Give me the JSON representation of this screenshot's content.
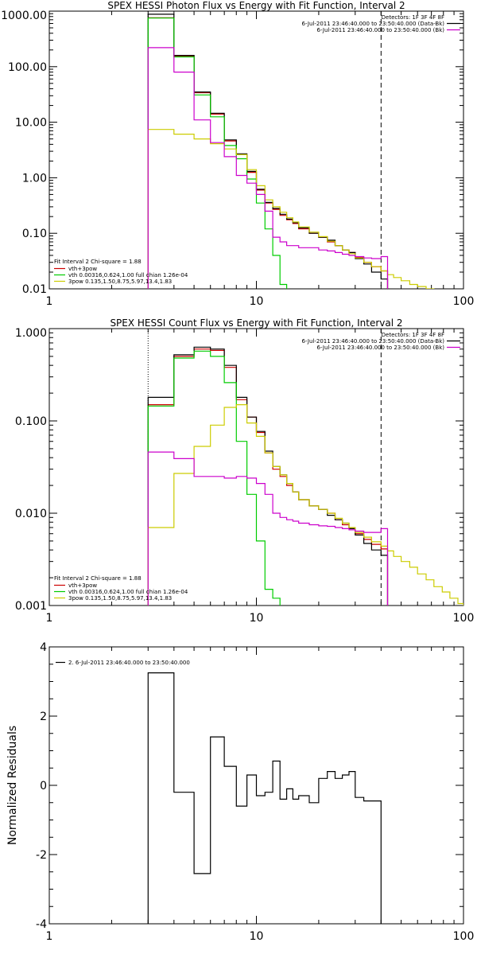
{
  "chart_data": [
    {
      "type": "line",
      "title": "SPEX HESSI Photon Flux vs Energy with Fit Function, Interval 2",
      "xlabel": "",
      "ylabel": "",
      "xscale": "log",
      "yscale": "log",
      "xlim": [
        1,
        100
      ],
      "ylim": [
        0.01,
        1000
      ],
      "x_ticks": [
        {
          "v": 1,
          "label": "1"
        },
        {
          "v": 10,
          "label": "10"
        },
        {
          "v": 100,
          "label": "100"
        }
      ],
      "y_ticks": [
        {
          "v": 1000,
          "label": "1000.00"
        },
        {
          "v": 100,
          "label": "100.00"
        },
        {
          "v": 10,
          "label": "10.00"
        },
        {
          "v": 1,
          "label": "1.00"
        },
        {
          "v": 0.1,
          "label": "0.10"
        },
        {
          "v": 0.01,
          "label": "0.01"
        }
      ],
      "vlines": [
        {
          "x": 3,
          "style": "dotted",
          "color": "#000000"
        },
        {
          "x": 40,
          "style": "dashed",
          "color": "#000000"
        }
      ],
      "legend_header": {
        "lines": [
          "Detectors: 1F 3F 4F 8F",
          "6-Jul-2011 23:46:40.000 to 23:50:40.000 (Data-Bk)",
          "6-Jul-2011 23:46:40.000 to 23:50:40.000 (Bk)"
        ],
        "colors": [
          "",
          "#000000",
          "#cc00cc"
        ],
        "placement": "top-right"
      },
      "legend_fit": {
        "title": "Fit Interval 2   Chi-square = 1.88",
        "entries": [
          {
            "label": "vth+3pow",
            "color": "#cc0000"
          },
          {
            "label": "vth 0.00316,0.624,1.00  full chian 1.26e-04",
            "color": "#00cc00"
          },
          {
            "label": "3pow 0.135,1.50,8.75,5.97,13.4,1.83",
            "color": "#cccc00"
          }
        ],
        "placement": "bottom-left"
      },
      "bin_edges": [
        3,
        4,
        5,
        6,
        7,
        8,
        9,
        10,
        11,
        12,
        13,
        14,
        15,
        16,
        18,
        20,
        22,
        24,
        26,
        28,
        30,
        33,
        36,
        40,
        43,
        46,
        50,
        55,
        60,
        66,
        72,
        79,
        86,
        94,
        100
      ],
      "series": [
        {
          "name": "vth+3pow",
          "color": "#cc0000",
          "values": [
            760,
            155,
            34,
            14,
            4.6,
            2.6,
            1.25,
            0.6,
            0.35,
            0.27,
            0.21,
            0.175,
            0.15,
            0.12,
            0.1,
            0.085,
            0.07,
            0.06,
            0.05,
            0.045,
            0.037,
            0.03,
            0.025,
            0.021
          ]
        },
        {
          "name": "Data-Bk",
          "color": "#000000",
          "values": [
            880,
            160,
            35,
            14.5,
            4.8,
            2.7,
            1.3,
            0.62,
            0.36,
            0.28,
            0.22,
            0.18,
            0.155,
            0.125,
            0.1,
            0.085,
            0.075,
            0.06,
            0.05,
            0.045,
            0.035,
            0.028,
            0.02,
            0.015
          ]
        },
        {
          "name": "vth",
          "color": "#00cc00",
          "values": [
            750,
            150,
            31,
            12.5,
            3.8,
            2.2,
            0.95,
            0.35,
            0.12,
            0.04,
            0.012
          ]
        },
        {
          "name": "3pow",
          "color": "#cccc00",
          "values": [
            7.4,
            6.1,
            5.0,
            4.1,
            3.3,
            2.6,
            1.4,
            0.72,
            0.4,
            0.3,
            0.24,
            0.19,
            0.16,
            0.13,
            0.105,
            0.087,
            0.072,
            0.06,
            0.05,
            0.043,
            0.036,
            0.03,
            0.025,
            0.021,
            0.018,
            0.016,
            0.014,
            0.012,
            0.011,
            0.01,
            0.009,
            0.008
          ]
        },
        {
          "name": "Bk",
          "color": "#cc00cc",
          "values": [
            220,
            80,
            11,
            4.3,
            2.4,
            1.1,
            0.8,
            0.5,
            0.25,
            0.085,
            0.07,
            0.06,
            0.06,
            0.055,
            0.055,
            0.05,
            0.048,
            0.045,
            0.042,
            0.04,
            0.038,
            0.036,
            0.035,
            0.038
          ]
        }
      ]
    },
    {
      "type": "line",
      "title": "SPEX HESSI Count Flux vs Energy with Fit Function, Interval 2",
      "xlabel": "",
      "ylabel": "",
      "xscale": "log",
      "yscale": "log",
      "xlim": [
        1,
        100
      ],
      "ylim": [
        0.001,
        1
      ],
      "x_ticks": [
        {
          "v": 1,
          "label": "1"
        },
        {
          "v": 10,
          "label": "10"
        },
        {
          "v": 100,
          "label": "100"
        }
      ],
      "y_ticks": [
        {
          "v": 1,
          "label": "1.000"
        },
        {
          "v": 0.1,
          "label": "0.100"
        },
        {
          "v": 0.01,
          "label": "0.010"
        },
        {
          "v": 0.001,
          "label": "0.001"
        }
      ],
      "vlines": [
        {
          "x": 3,
          "style": "dotted",
          "color": "#000000"
        },
        {
          "x": 40,
          "style": "dashed",
          "color": "#000000"
        }
      ],
      "legend_header": {
        "lines": [
          "Detectors: 1F 3F 4F 8F",
          "6-Jul-2011 23:46:40.000 to 23:50:40.000 (Data-Bk)",
          "6-Jul-2011 23:46:40.000 to 23:50:40.000 (Bk)"
        ],
        "colors": [
          "",
          "#000000",
          "#cc00cc"
        ],
        "placement": "top-right"
      },
      "legend_fit": {
        "title": "Fit Interval 2   Chi-square = 1.88",
        "entries": [
          {
            "label": "vth+3pow",
            "color": "#cc0000"
          },
          {
            "label": "vth 0.00316,0.624,1.00  full chian 1.26e-04",
            "color": "#00cc00"
          },
          {
            "label": "3pow 0.135,1.50,8.75,5.97,13.4,1.83",
            "color": "#cccc00"
          }
        ],
        "placement": "bottom-left"
      },
      "bin_edges": [
        3,
        4,
        5,
        6,
        7,
        8,
        9,
        10,
        11,
        12,
        13,
        14,
        15,
        16,
        18,
        20,
        22,
        24,
        26,
        28,
        30,
        33,
        36,
        40,
        43,
        46,
        50,
        55,
        60,
        66,
        72,
        79,
        86,
        94,
        100
      ],
      "series": [
        {
          "name": "vth+3pow",
          "color": "#cc0000",
          "values": [
            0.15,
            0.5,
            0.6,
            0.58,
            0.38,
            0.17,
            0.11,
            0.075,
            0.045,
            0.03,
            0.025,
            0.02,
            0.017,
            0.014,
            0.012,
            0.011,
            0.01,
            0.0085,
            0.0075,
            0.0068,
            0.006,
            0.0052,
            0.0046,
            0.0041
          ]
        },
        {
          "name": "Data-Bk",
          "color": "#000000",
          "values": [
            0.18,
            0.52,
            0.63,
            0.6,
            0.4,
            0.18,
            0.11,
            0.077,
            0.047,
            0.032,
            0.026,
            0.021,
            0.017,
            0.014,
            0.012,
            0.011,
            0.0095,
            0.0085,
            0.0078,
            0.0068,
            0.0058,
            0.0047,
            0.004,
            0.0035
          ]
        },
        {
          "name": "vth",
          "color": "#00cc00",
          "values": [
            0.145,
            0.48,
            0.57,
            0.5,
            0.26,
            0.06,
            0.016,
            0.005,
            0.0015,
            0.0012
          ]
        },
        {
          "name": "3pow",
          "color": "#cccc00",
          "values": [
            0.007,
            0.027,
            0.053,
            0.09,
            0.14,
            0.15,
            0.095,
            0.068,
            0.045,
            0.032,
            0.026,
            0.021,
            0.017,
            0.014,
            0.012,
            0.011,
            0.01,
            0.0088,
            0.0078,
            0.007,
            0.0062,
            0.0055,
            0.0049,
            0.0044,
            0.0039,
            0.0034,
            0.003,
            0.0026,
            0.0022,
            0.0019,
            0.0016,
            0.0014,
            0.0012,
            0.00105
          ]
        },
        {
          "name": "Bk",
          "color": "#cc00cc",
          "values": [
            0.046,
            0.039,
            0.025,
            0.025,
            0.024,
            0.025,
            0.024,
            0.021,
            0.016,
            0.01,
            0.009,
            0.0085,
            0.0082,
            0.0078,
            0.0075,
            0.0073,
            0.0072,
            0.007,
            0.0068,
            0.0066,
            0.0064,
            0.0062,
            0.0062,
            0.0068
          ]
        }
      ]
    },
    {
      "type": "line",
      "title": "",
      "xlabel": "",
      "ylabel": "Normalized Residuals",
      "xscale": "log",
      "yscale": "linear",
      "xlim": [
        1,
        100
      ],
      "ylim": [
        -4,
        4
      ],
      "x_ticks": [
        {
          "v": 1,
          "label": "1"
        },
        {
          "v": 10,
          "label": "10"
        },
        {
          "v": 100,
          "label": "100"
        }
      ],
      "y_ticks": [
        {
          "v": 4,
          "label": "4"
        },
        {
          "v": 2,
          "label": "2"
        },
        {
          "v": 0,
          "label": "0"
        },
        {
          "v": -2,
          "label": "-2"
        },
        {
          "v": -4,
          "label": "-4"
        }
      ],
      "legend": {
        "entries": [
          {
            "label": "2.  6-Jul-2011 23:46:40.000 to 23:50:40.000",
            "color": "#000000"
          }
        ],
        "placement": "top-left"
      },
      "bin_edges": [
        3,
        4,
        5,
        6,
        7,
        8,
        9,
        10,
        11,
        12,
        13,
        14,
        15,
        16,
        18,
        20,
        22,
        24,
        26,
        28,
        30,
        33,
        36,
        40
      ],
      "series": [
        {
          "name": "",
          "color": "#000000",
          "values": [
            3.25,
            -0.2,
            -2.55,
            1.4,
            0.55,
            -0.6,
            0.3,
            -0.3,
            -0.2,
            0.7,
            -0.4,
            -0.1,
            -0.4,
            -0.3,
            -0.5,
            0.2,
            0.4,
            0.2,
            0.3,
            0.4,
            -0.35,
            -0.45,
            -0.45
          ]
        }
      ]
    }
  ]
}
